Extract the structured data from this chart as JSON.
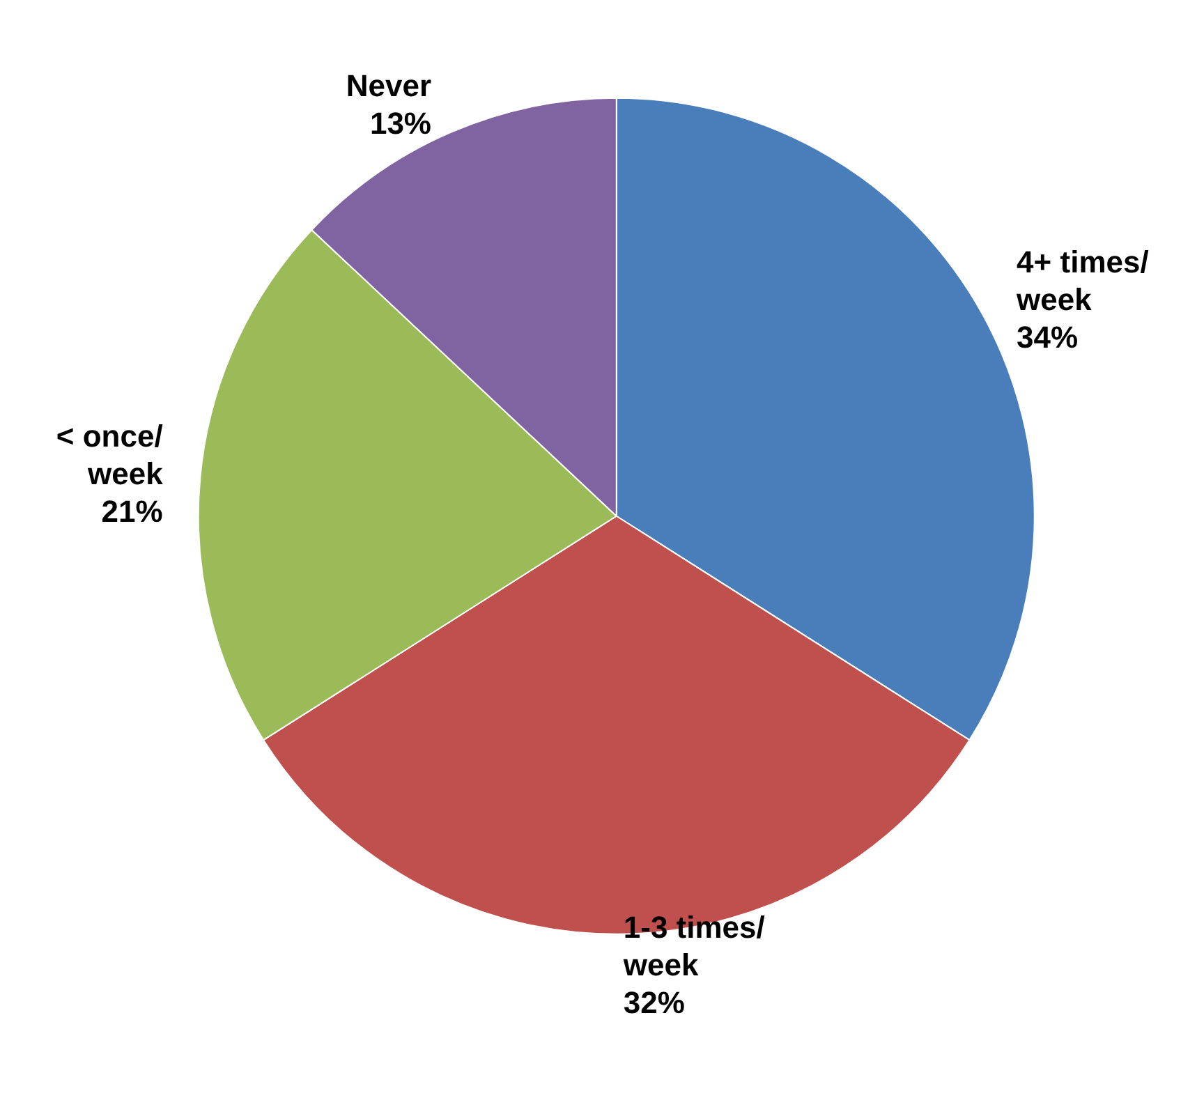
{
  "chart_data": {
    "type": "pie",
    "categories": [
      "4+ times/ week",
      "1-3 times/ week",
      "< once/ week",
      "Never"
    ],
    "values": [
      34,
      32,
      21,
      13
    ],
    "colors": [
      "#4a7ebb",
      "#c0504d",
      "#9bbb59",
      "#8064a2"
    ],
    "value_labels": [
      "34%",
      "32%",
      "21%",
      "13%"
    ]
  }
}
